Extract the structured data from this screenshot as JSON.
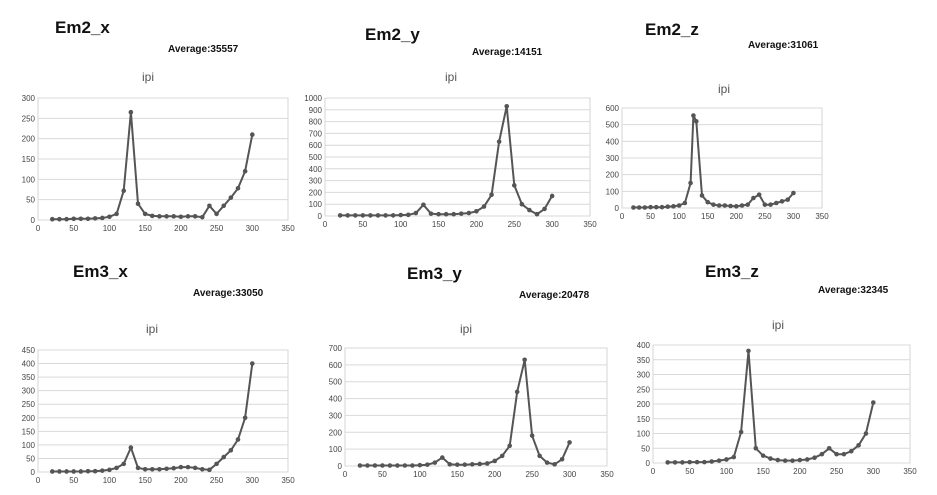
{
  "chart_data": [
    {
      "type": "line",
      "heading": "Em2_x",
      "average": "Average:35557",
      "title": "ipi",
      "xticks": [
        "0",
        "50",
        "100",
        "150",
        "200",
        "250",
        "300",
        "350"
      ],
      "xlim": [
        0,
        350
      ],
      "yticks": [
        "0",
        "50",
        "100",
        "150",
        "200",
        "250",
        "300"
      ],
      "ylim": [
        0,
        300
      ],
      "grid": "horizontal",
      "series": [
        {
          "x": [
            20,
            30,
            40,
            50,
            60,
            70,
            80,
            90,
            100,
            110,
            120,
            130,
            140,
            150,
            160,
            170,
            180,
            190,
            200,
            210,
            220,
            230,
            240,
            250,
            260,
            270,
            280,
            290,
            300
          ],
          "y": [
            2,
            2,
            2,
            3,
            3,
            3,
            4,
            5,
            8,
            15,
            72,
            265,
            40,
            15,
            10,
            9,
            9,
            9,
            8,
            9,
            9,
            7,
            35,
            15,
            35,
            55,
            78,
            120,
            210
          ]
        }
      ]
    },
    {
      "type": "line",
      "heading": "Em2_y",
      "average": "Average:14151",
      "title": "ipi",
      "xticks": [
        "0",
        "50",
        "100",
        "150",
        "200",
        "250",
        "300",
        "350"
      ],
      "xlim": [
        0,
        350
      ],
      "yticks": [
        "0",
        "100",
        "200",
        "300",
        "400",
        "500",
        "600",
        "700",
        "800",
        "900",
        "1000"
      ],
      "ylim": [
        0,
        1000
      ],
      "grid": "horizontal",
      "series": [
        {
          "x": [
            20,
            30,
            40,
            50,
            60,
            70,
            80,
            90,
            100,
            110,
            120,
            130,
            140,
            150,
            160,
            170,
            180,
            190,
            200,
            210,
            220,
            230,
            240,
            250,
            260,
            270,
            280,
            290,
            300
          ],
          "y": [
            5,
            5,
            5,
            5,
            5,
            5,
            5,
            5,
            8,
            10,
            25,
            95,
            20,
            15,
            15,
            15,
            20,
            25,
            40,
            80,
            180,
            630,
            930,
            260,
            100,
            50,
            15,
            60,
            170
          ]
        }
      ]
    },
    {
      "type": "line",
      "heading": "Em2_z",
      "average": "Average:31061",
      "title": "ipi",
      "xticks": [
        "0",
        "50",
        "100",
        "150",
        "200",
        "250",
        "300",
        "350"
      ],
      "xlim": [
        0,
        350
      ],
      "yticks": [
        "0",
        "100",
        "200",
        "300",
        "400",
        "500",
        "600"
      ],
      "ylim": [
        0,
        600
      ],
      "grid": "horizontal",
      "series": [
        {
          "x": [
            20,
            30,
            40,
            50,
            60,
            70,
            80,
            90,
            100,
            110,
            120,
            125,
            130,
            140,
            150,
            160,
            170,
            180,
            190,
            200,
            210,
            220,
            230,
            240,
            250,
            260,
            270,
            280,
            290,
            300
          ],
          "y": [
            3,
            3,
            3,
            5,
            5,
            5,
            8,
            10,
            15,
            30,
            150,
            555,
            520,
            75,
            35,
            20,
            15,
            15,
            12,
            10,
            15,
            20,
            60,
            80,
            20,
            20,
            30,
            40,
            50,
            90
          ]
        }
      ]
    },
    {
      "type": "line",
      "heading": "Em3_x",
      "average": "Average:33050",
      "title": "ipi",
      "xticks": [
        "0",
        "50",
        "100",
        "150",
        "200",
        "250",
        "300",
        "350"
      ],
      "xlim": [
        0,
        350
      ],
      "yticks": [
        "0",
        "50",
        "100",
        "150",
        "200",
        "250",
        "300",
        "350",
        "400",
        "450"
      ],
      "ylim": [
        0,
        450
      ],
      "grid": "horizontal",
      "series": [
        {
          "x": [
            20,
            30,
            40,
            50,
            60,
            70,
            80,
            90,
            100,
            110,
            120,
            130,
            140,
            150,
            160,
            170,
            180,
            190,
            200,
            210,
            220,
            230,
            240,
            250,
            260,
            270,
            280,
            290,
            300
          ],
          "y": [
            2,
            2,
            2,
            2,
            2,
            3,
            3,
            5,
            8,
            15,
            30,
            90,
            15,
            10,
            10,
            10,
            12,
            14,
            18,
            18,
            15,
            10,
            8,
            30,
            55,
            80,
            120,
            200,
            400
          ]
        }
      ]
    },
    {
      "type": "line",
      "heading": "Em3_y",
      "average": "Average:20478",
      "title": "ipi",
      "xticks": [
        "0",
        "50",
        "100",
        "150",
        "200",
        "250",
        "300",
        "350"
      ],
      "xlim": [
        0,
        350
      ],
      "yticks": [
        "0",
        "100",
        "200",
        "300",
        "400",
        "500",
        "600",
        "700"
      ],
      "ylim": [
        0,
        700
      ],
      "grid": "horizontal",
      "series": [
        {
          "x": [
            20,
            30,
            40,
            50,
            60,
            70,
            80,
            90,
            100,
            110,
            120,
            130,
            140,
            150,
            160,
            170,
            180,
            190,
            200,
            210,
            220,
            230,
            240,
            250,
            260,
            270,
            280,
            290,
            300
          ],
          "y": [
            3,
            3,
            3,
            3,
            3,
            3,
            3,
            3,
            5,
            8,
            20,
            50,
            10,
            8,
            8,
            10,
            12,
            15,
            30,
            60,
            120,
            440,
            630,
            180,
            60,
            20,
            10,
            40,
            140
          ]
        }
      ]
    },
    {
      "type": "line",
      "heading": "Em3_z",
      "average": "Average:32345",
      "title": "ipi",
      "xticks": [
        "0",
        "50",
        "100",
        "150",
        "200",
        "250",
        "300",
        "350"
      ],
      "xlim": [
        0,
        350
      ],
      "yticks": [
        "0",
        "50",
        "100",
        "150",
        "200",
        "250",
        "300",
        "350",
        "400"
      ],
      "ylim": [
        0,
        400
      ],
      "grid": "horizontal",
      "series": [
        {
          "x": [
            20,
            30,
            40,
            50,
            60,
            70,
            80,
            90,
            100,
            110,
            120,
            130,
            140,
            150,
            160,
            170,
            180,
            190,
            200,
            210,
            220,
            230,
            240,
            250,
            260,
            270,
            280,
            290,
            300
          ],
          "y": [
            2,
            2,
            2,
            3,
            3,
            3,
            5,
            8,
            12,
            20,
            105,
            380,
            50,
            25,
            15,
            10,
            8,
            8,
            10,
            12,
            18,
            30,
            50,
            30,
            30,
            40,
            60,
            100,
            205
          ]
        }
      ]
    }
  ]
}
